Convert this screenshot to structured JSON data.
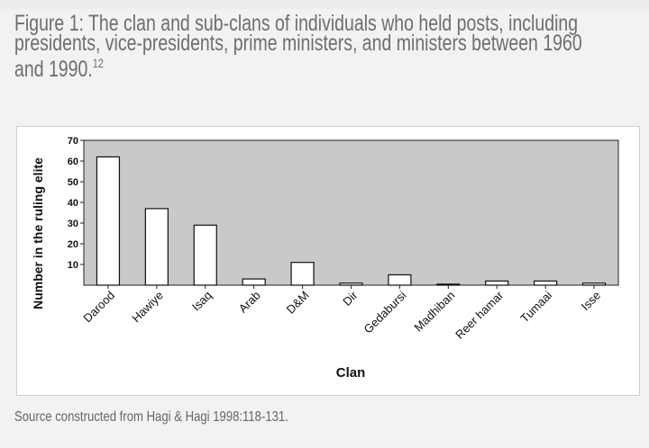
{
  "figure": {
    "title_lines": [
      "Figure 1: The clan and sub-clans of individuals who held posts, including",
      "presidents, vice-presidents, prime ministers, and ministers between 1960",
      "and 1990."
    ],
    "title_footnote": "12",
    "source": "Source constructed from Hagi & Hagi 1998:118-131."
  },
  "colors": {
    "plot_background": "#c9c9c9",
    "bar_fill": "#ffffff",
    "bar_stroke": "#111111"
  },
  "chart_data": {
    "type": "bar",
    "title": "",
    "xlabel": "Clan",
    "ylabel": "Number in the ruling elite",
    "categories": [
      "Darood",
      "Hawiye",
      "Isaq",
      "Arab",
      "D&M",
      "Dir",
      "Gedabursi",
      "Madhiban",
      "Reer hamar",
      "Tumaai",
      "Isse"
    ],
    "values": [
      62,
      37,
      29,
      3,
      11,
      1,
      5,
      0.5,
      2,
      2,
      1
    ],
    "ylim": [
      0,
      70
    ],
    "yticks": [
      10,
      20,
      30,
      40,
      50,
      60,
      70
    ],
    "grid": false,
    "legend": "none"
  }
}
